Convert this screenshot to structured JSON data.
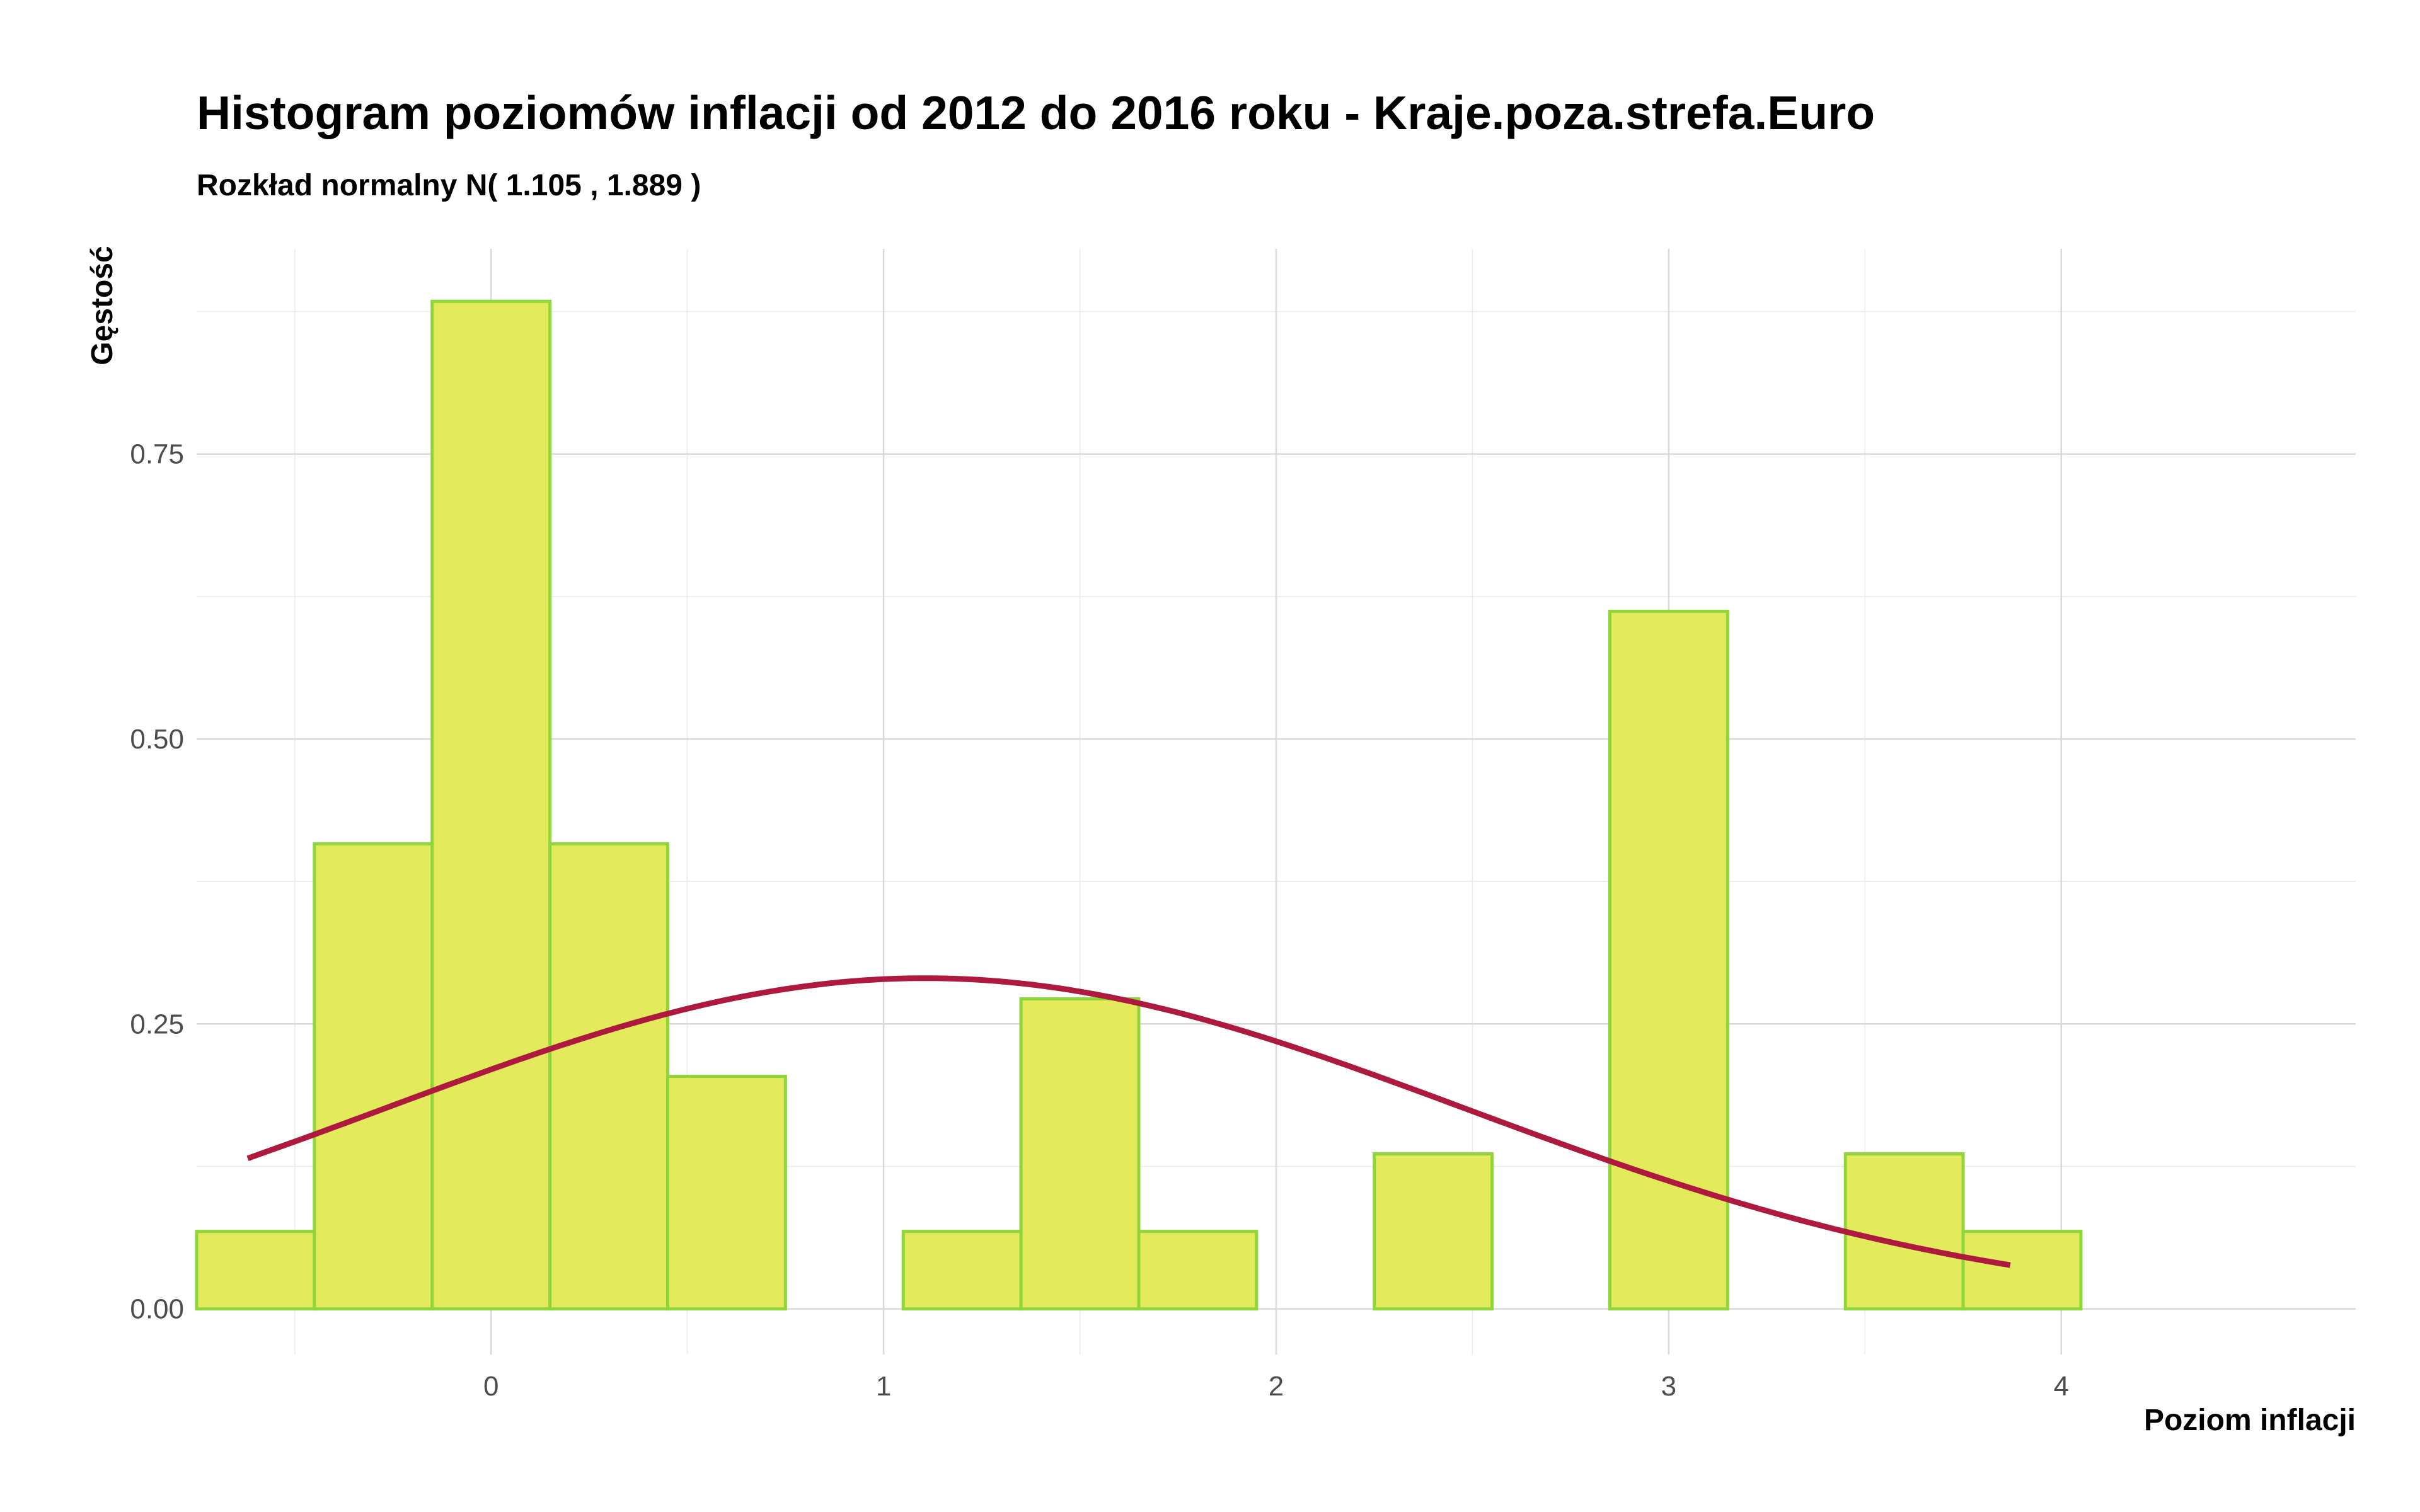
{
  "chart_data": {
    "type": "bar",
    "title": "Histogram poziomów inflacji od 2012 do 2016 roku  -  Kraje.poza.strefa.Euro",
    "subtitle": "Rozkład normalny N( 1.105 ,  1.889 )",
    "xlabel": "Poziom inflacji",
    "ylabel": "Gęstość",
    "xlim": [
      -0.75,
      4.75
    ],
    "ylim": [
      -0.04,
      0.93
    ],
    "x_ticks": [
      0,
      1,
      2,
      3,
      4
    ],
    "x_tick_labels": [
      "0",
      "1",
      "2",
      "3",
      "4"
    ],
    "y_ticks": [
      0,
      0.25,
      0.5,
      0.75
    ],
    "y_tick_labels": [
      "0.00",
      "0.25",
      "0.50",
      "0.75"
    ],
    "grid": true,
    "legend": "none",
    "bins": [
      {
        "x0": -0.75,
        "x1": -0.45,
        "density": 0.068
      },
      {
        "x0": -0.45,
        "x1": -0.15,
        "density": 0.408
      },
      {
        "x0": -0.15,
        "x1": 0.15,
        "density": 0.884
      },
      {
        "x0": 0.15,
        "x1": 0.45,
        "density": 0.408
      },
      {
        "x0": 0.45,
        "x1": 0.75,
        "density": 0.204
      },
      {
        "x0": 0.75,
        "x1": 1.05,
        "density": 0.0
      },
      {
        "x0": 1.05,
        "x1": 1.35,
        "density": 0.068
      },
      {
        "x0": 1.35,
        "x1": 1.65,
        "density": 0.272
      },
      {
        "x0": 1.65,
        "x1": 1.95,
        "density": 0.068
      },
      {
        "x0": 1.95,
        "x1": 2.25,
        "density": 0.0
      },
      {
        "x0": 2.25,
        "x1": 2.55,
        "density": 0.136
      },
      {
        "x0": 2.55,
        "x1": 2.85,
        "density": 0.0
      },
      {
        "x0": 2.85,
        "x1": 3.15,
        "density": 0.612
      },
      {
        "x0": 3.15,
        "x1": 3.45,
        "density": 0.0
      },
      {
        "x0": 3.45,
        "x1": 3.75,
        "density": 0.136
      },
      {
        "x0": 3.75,
        "x1": 4.05,
        "density": 0.068
      }
    ],
    "normal_curve": {
      "mean": 1.105,
      "sd": 1.375,
      "scale": 1.0,
      "x_range": [
        -0.62,
        3.87
      ]
    },
    "colors": {
      "bar_fill": "#e3ea5c",
      "bar_stroke": "#8fd63a",
      "curve": "#ad1a3e",
      "grid_major": "#d9d9d9",
      "grid_minor": "#ebebeb"
    }
  }
}
